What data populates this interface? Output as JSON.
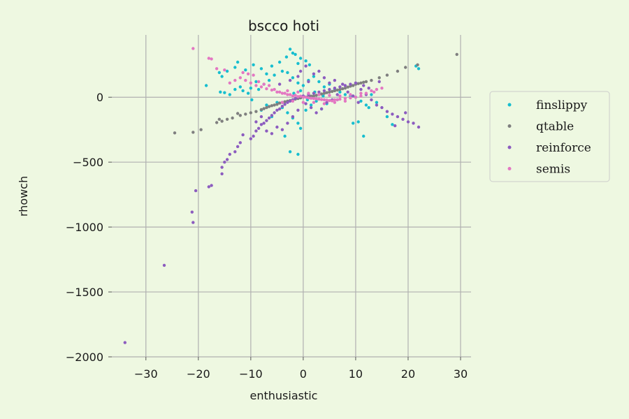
{
  "chart_data": {
    "type": "scatter",
    "title": "bscco hoti",
    "xlabel": "enthusiastic",
    "ylabel": "rhowch",
    "xlim": [
      -36.5,
      32
    ],
    "ylim": [
      -2000,
      480
    ],
    "xticks": [
      -30,
      -20,
      -10,
      0,
      10,
      20,
      30
    ],
    "yticks": [
      0,
      -500,
      -1000,
      -1500,
      -2000
    ],
    "xtick_labels": [
      "−30",
      "−20",
      "−10",
      "0",
      "10",
      "20",
      "30"
    ],
    "ytick_labels": [
      "0",
      "−500",
      "−1000",
      "−1500",
      "−2000"
    ],
    "grid": true,
    "legend_position": "right",
    "series": [
      {
        "name": "finslippy",
        "color": "#17becf",
        "points": [
          [
            -2.5,
            370
          ],
          [
            -2.0,
            340
          ],
          [
            -3.2,
            310
          ],
          [
            -1.5,
            330
          ],
          [
            -0.5,
            300
          ],
          [
            0.5,
            280
          ],
          [
            1.2,
            250
          ],
          [
            -1.0,
            260
          ],
          [
            -4.5,
            270
          ],
          [
            -6.0,
            240
          ],
          [
            -8.0,
            220
          ],
          [
            -9.5,
            250
          ],
          [
            -11.0,
            210
          ],
          [
            -12.5,
            270
          ],
          [
            -13.0,
            230
          ],
          [
            -14.5,
            200
          ],
          [
            -15.5,
            160
          ],
          [
            -16.0,
            190
          ],
          [
            -15.8,
            40
          ],
          [
            -15.0,
            35
          ],
          [
            -14.0,
            20
          ],
          [
            -13.0,
            60
          ],
          [
            -12.0,
            80
          ],
          [
            -11.5,
            50
          ],
          [
            -10.0,
            70
          ],
          [
            -9.0,
            120
          ],
          [
            -8.5,
            60
          ],
          [
            -7.5,
            100
          ],
          [
            -6.5,
            130
          ],
          [
            -5.5,
            170
          ],
          [
            -4.0,
            200
          ],
          [
            -3.0,
            190
          ],
          [
            -2.0,
            150
          ],
          [
            -1.0,
            110
          ],
          [
            0.0,
            90
          ],
          [
            1.0,
            130
          ],
          [
            2.0,
            160
          ],
          [
            3.0,
            120
          ],
          [
            4.0,
            80
          ],
          [
            5.0,
            100
          ],
          [
            6.0,
            60
          ],
          [
            7.0,
            40
          ],
          [
            8.0,
            20
          ],
          [
            9.0,
            10
          ],
          [
            10.0,
            0
          ],
          [
            11.0,
            -30
          ],
          [
            12.0,
            -60
          ],
          [
            13.0,
            20
          ],
          [
            -5.0,
            -40
          ],
          [
            -4.0,
            -80
          ],
          [
            -3.0,
            -120
          ],
          [
            -2.0,
            -160
          ],
          [
            -1.0,
            -200
          ],
          [
            -0.5,
            -240
          ],
          [
            -2.5,
            -420
          ],
          [
            -1.0,
            -440
          ],
          [
            -3.5,
            -300
          ],
          [
            -6.0,
            -150
          ],
          [
            -8.0,
            -100
          ],
          [
            -7.0,
            -60
          ],
          [
            0.5,
            -100
          ],
          [
            1.5,
            -60
          ],
          [
            2.5,
            -30
          ],
          [
            3.5,
            -90
          ],
          [
            4.5,
            -50
          ],
          [
            9.5,
            -200
          ],
          [
            10.5,
            -190
          ],
          [
            11.5,
            -300
          ],
          [
            12.5,
            -80
          ],
          [
            14.0,
            -40
          ],
          [
            16.0,
            -150
          ],
          [
            17.0,
            -210
          ],
          [
            22.0,
            220
          ],
          [
            21.5,
            240
          ],
          [
            -18.5,
            90
          ],
          [
            -7.0,
            180
          ],
          [
            -0.5,
            50
          ],
          [
            0.8,
            -20
          ],
          [
            2.2,
            40
          ],
          [
            -1.8,
            30
          ],
          [
            3.8,
            10
          ],
          [
            6.5,
            -20
          ],
          [
            -9.8,
            -20
          ],
          [
            -10.5,
            30
          ]
        ]
      },
      {
        "name": "qtable",
        "color": "#7f7f7f",
        "points": [
          [
            29.3,
            330
          ],
          [
            21.8,
            250
          ],
          [
            19.5,
            230
          ],
          [
            18.0,
            200
          ],
          [
            16.0,
            170
          ],
          [
            14.5,
            150
          ],
          [
            13.0,
            130
          ],
          [
            12.0,
            120
          ],
          [
            11.0,
            110
          ],
          [
            10.0,
            100
          ],
          [
            9.0,
            85
          ],
          [
            8.0,
            70
          ],
          [
            7.0,
            60
          ],
          [
            6.0,
            50
          ],
          [
            5.0,
            40
          ],
          [
            4.0,
            30
          ],
          [
            3.0,
            20
          ],
          [
            2.0,
            10
          ],
          [
            1.0,
            5
          ],
          [
            0.0,
            0
          ],
          [
            -1.0,
            -10
          ],
          [
            -2.0,
            -20
          ],
          [
            -3.0,
            -30
          ],
          [
            -4.0,
            -40
          ],
          [
            -5.0,
            -55
          ],
          [
            -6.0,
            -65
          ],
          [
            -7.0,
            -80
          ],
          [
            -8.0,
            -95
          ],
          [
            -9.0,
            -110
          ],
          [
            -10.0,
            -120
          ],
          [
            -11.0,
            -130
          ],
          [
            -12.0,
            -140
          ],
          [
            -13.5,
            -160
          ],
          [
            -14.5,
            -170
          ],
          [
            -15.5,
            -185
          ],
          [
            -16.5,
            -195
          ],
          [
            -19.5,
            -250
          ],
          [
            -21.0,
            -270
          ],
          [
            -24.5,
            -275
          ],
          [
            -16.0,
            -170
          ],
          [
            -12.5,
            -125
          ],
          [
            9.5,
            90
          ],
          [
            10.5,
            105
          ],
          [
            11.5,
            115
          ],
          [
            8.5,
            78
          ],
          [
            7.5,
            65
          ],
          [
            6.5,
            55
          ],
          [
            5.5,
            45
          ],
          [
            4.5,
            35
          ],
          [
            3.5,
            25
          ],
          [
            2.5,
            15
          ],
          [
            1.5,
            8
          ],
          [
            0.5,
            2
          ],
          [
            -0.5,
            -5
          ],
          [
            -1.5,
            -15
          ],
          [
            -2.5,
            -25
          ],
          [
            -3.5,
            -35
          ],
          [
            -4.5,
            -45
          ],
          [
            -5.5,
            -60
          ],
          [
            -6.5,
            -72
          ],
          [
            -7.5,
            -88
          ]
        ]
      },
      {
        "name": "reinforce",
        "color": "#8c5cbf",
        "points": [
          [
            -34.0,
            -1890
          ],
          [
            -26.5,
            -1295
          ],
          [
            -21.0,
            -965
          ],
          [
            -21.2,
            -885
          ],
          [
            -20.5,
            -720
          ],
          [
            -18.0,
            -690
          ],
          [
            -17.5,
            -680
          ],
          [
            -15.5,
            -590
          ],
          [
            -15.5,
            -540
          ],
          [
            -15.0,
            -500
          ],
          [
            -14.5,
            -480
          ],
          [
            -14.0,
            -440
          ],
          [
            -13.0,
            -420
          ],
          [
            -12.5,
            -380
          ],
          [
            -12.0,
            -350
          ],
          [
            -11.5,
            -290
          ],
          [
            -10.0,
            -320
          ],
          [
            -9.5,
            -300
          ],
          [
            -9.0,
            -260
          ],
          [
            -8.5,
            -240
          ],
          [
            -8.0,
            -210
          ],
          [
            -7.5,
            -200
          ],
          [
            -7.0,
            -180
          ],
          [
            -6.5,
            -160
          ],
          [
            -6.0,
            -140
          ],
          [
            -5.5,
            -120
          ],
          [
            -5.0,
            -100
          ],
          [
            -4.5,
            -90
          ],
          [
            -4.0,
            -70
          ],
          [
            -3.5,
            -55
          ],
          [
            -3.0,
            -40
          ],
          [
            -2.5,
            -30
          ],
          [
            -2.0,
            -20
          ],
          [
            -1.5,
            -10
          ],
          [
            -1.0,
            0
          ],
          [
            0.0,
            10
          ],
          [
            1.0,
            20
          ],
          [
            2.0,
            30
          ],
          [
            3.0,
            40
          ],
          [
            4.0,
            50
          ],
          [
            5.0,
            60
          ],
          [
            6.0,
            70
          ],
          [
            7.0,
            80
          ],
          [
            8.0,
            90
          ],
          [
            9.0,
            100
          ],
          [
            10.0,
            110
          ],
          [
            11.0,
            60
          ],
          [
            12.0,
            20
          ],
          [
            13.0,
            -20
          ],
          [
            14.0,
            -60
          ],
          [
            15.0,
            -80
          ],
          [
            16.0,
            -110
          ],
          [
            17.0,
            -130
          ],
          [
            18.0,
            -150
          ],
          [
            19.0,
            -170
          ],
          [
            20.0,
            -190
          ],
          [
            21.0,
            -200
          ],
          [
            22.0,
            -230
          ],
          [
            17.5,
            -220
          ],
          [
            19.5,
            -120
          ],
          [
            -3.0,
            -200
          ],
          [
            -4.0,
            -250
          ],
          [
            -2.0,
            -150
          ],
          [
            -1.0,
            -100
          ],
          [
            0.5,
            -50
          ],
          [
            1.5,
            -80
          ],
          [
            2.5,
            -120
          ],
          [
            3.5,
            -90
          ],
          [
            4.5,
            -40
          ],
          [
            5.5,
            -20
          ],
          [
            6.5,
            20
          ],
          [
            -6.0,
            -280
          ],
          [
            -5.0,
            -230
          ],
          [
            -7.0,
            -260
          ],
          [
            -8.0,
            -150
          ],
          [
            -9.0,
            -190
          ],
          [
            3.0,
            200
          ],
          [
            4.0,
            150
          ],
          [
            2.0,
            180
          ],
          [
            -1.0,
            160
          ],
          [
            -2.5,
            130
          ],
          [
            -4.5,
            100
          ],
          [
            1.0,
            120
          ],
          [
            5.0,
            110
          ],
          [
            6.0,
            130
          ],
          [
            -0.5,
            200
          ],
          [
            0.5,
            240
          ],
          [
            7.5,
            100
          ],
          [
            8.5,
            40
          ],
          [
            9.5,
            10
          ],
          [
            10.5,
            -40
          ],
          [
            11.5,
            90
          ],
          [
            12.5,
            70
          ],
          [
            14.5,
            120
          ]
        ]
      },
      {
        "name": "semis",
        "color": "#e377c2",
        "points": [
          [
            -21.0,
            375
          ],
          [
            -18.0,
            300
          ],
          [
            -17.5,
            295
          ],
          [
            -16.5,
            220
          ],
          [
            -15.0,
            210
          ],
          [
            -11.5,
            190
          ],
          [
            -10.5,
            180
          ],
          [
            -9.5,
            170
          ],
          [
            -11.0,
            130
          ],
          [
            -10.0,
            110
          ],
          [
            -9.0,
            90
          ],
          [
            -8.0,
            80
          ],
          [
            -7.0,
            65
          ],
          [
            -6.0,
            55
          ],
          [
            -5.0,
            40
          ],
          [
            -4.0,
            30
          ],
          [
            -3.0,
            20
          ],
          [
            -2.0,
            10
          ],
          [
            -1.0,
            5
          ],
          [
            0.0,
            0
          ],
          [
            1.0,
            -5
          ],
          [
            2.0,
            -10
          ],
          [
            3.0,
            -15
          ],
          [
            4.0,
            -20
          ],
          [
            5.0,
            -25
          ],
          [
            6.0,
            -20
          ],
          [
            7.0,
            -15
          ],
          [
            8.0,
            -10
          ],
          [
            9.0,
            -5
          ],
          [
            10.0,
            0
          ],
          [
            11.0,
            10
          ],
          [
            12.0,
            30
          ],
          [
            13.0,
            50
          ],
          [
            14.0,
            60
          ],
          [
            15.0,
            70
          ],
          [
            -5.5,
            60
          ],
          [
            -4.5,
            40
          ],
          [
            -3.5,
            30
          ],
          [
            -2.5,
            20
          ],
          [
            -1.5,
            15
          ],
          [
            -0.5,
            8
          ],
          [
            0.5,
            0
          ],
          [
            1.5,
            -8
          ],
          [
            2.5,
            -12
          ],
          [
            3.5,
            -18
          ],
          [
            4.5,
            -22
          ],
          [
            5.5,
            -28
          ],
          [
            6.5,
            -20
          ],
          [
            -7.5,
            100
          ],
          [
            -8.5,
            120
          ],
          [
            -6.5,
            90
          ],
          [
            -3.0,
            50
          ],
          [
            -2.0,
            -30
          ],
          [
            0.0,
            -40
          ],
          [
            2.0,
            -40
          ],
          [
            4.0,
            -50
          ],
          [
            6.0,
            -40
          ],
          [
            8.0,
            -30
          ],
          [
            -12.0,
            150
          ],
          [
            -13.0,
            130
          ],
          [
            -14.0,
            110
          ],
          [
            -4.0,
            -40
          ],
          [
            -1.0,
            40
          ],
          [
            1.0,
            30
          ],
          [
            3.0,
            20
          ],
          [
            5.0,
            15
          ],
          [
            7.0,
            10
          ],
          [
            9.0,
            20
          ],
          [
            11.0,
            30
          ],
          [
            13.5,
            40
          ]
        ]
      }
    ]
  }
}
